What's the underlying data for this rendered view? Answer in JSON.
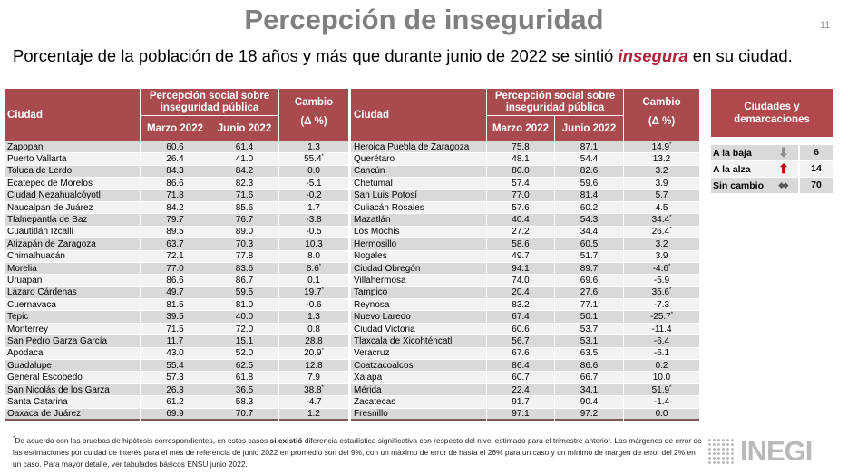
{
  "page": {
    "title": "Percepción de inseguridad",
    "number": "11",
    "subtitle_before": "Porcentaje de la población de 18 años y más que durante junio de 2022 se sintió ",
    "subtitle_em": "insegura",
    "subtitle_after": " en su ciudad."
  },
  "table_headers": {
    "city": "Ciudad",
    "perception": "Percepción social sobre inseguridad pública",
    "march": "Marzo 2022",
    "june": "Junio 2022",
    "change": "Cambio",
    "change_unit": "(Δ %)"
  },
  "left_rows": [
    {
      "city": "Zapopan",
      "mar": "60.6",
      "jun": "61.4",
      "chg": "1.3",
      "sig": false
    },
    {
      "city": "Puerto Vallarta",
      "mar": "26.4",
      "jun": "41.0",
      "chg": "55.4",
      "sig": true
    },
    {
      "city": "Toluca de Lerdo",
      "mar": "84.3",
      "jun": "84.2",
      "chg": "0.0",
      "sig": false
    },
    {
      "city": "Ecatepec de Morelos",
      "mar": "86.6",
      "jun": "82.3",
      "chg": "-5.1",
      "sig": false
    },
    {
      "city": "Ciudad Nezahualcóyotl",
      "mar": "71.8",
      "jun": "71.6",
      "chg": "-0.2",
      "sig": false
    },
    {
      "city": "Naucalpan de Juárez",
      "mar": "84.2",
      "jun": "85.6",
      "chg": "1.7",
      "sig": false
    },
    {
      "city": "Tlalnepantla de Baz",
      "mar": "79.7",
      "jun": "76.7",
      "chg": "-3.8",
      "sig": false
    },
    {
      "city": "Cuautitlán Izcalli",
      "mar": "89.5",
      "jun": "89.0",
      "chg": "-0.5",
      "sig": false
    },
    {
      "city": "Atizapán de Zaragoza",
      "mar": "63.7",
      "jun": "70.3",
      "chg": "10.3",
      "sig": false
    },
    {
      "city": "Chimalhuacán",
      "mar": "72.1",
      "jun": "77.8",
      "chg": "8.0",
      "sig": false
    },
    {
      "city": "Morelia",
      "mar": "77.0",
      "jun": "83.6",
      "chg": "8.6",
      "sig": true
    },
    {
      "city": "Uruapan",
      "mar": "86.6",
      "jun": "86.7",
      "chg": "0.1",
      "sig": false
    },
    {
      "city": "Lázaro Cárdenas",
      "mar": "49.7",
      "jun": "59.5",
      "chg": "19.7",
      "sig": true
    },
    {
      "city": "Cuernavaca",
      "mar": "81.5",
      "jun": "81.0",
      "chg": "-0.6",
      "sig": false
    },
    {
      "city": "Tepic",
      "mar": "39.5",
      "jun": "40.0",
      "chg": "1.3",
      "sig": false
    },
    {
      "city": "Monterrey",
      "mar": "71.5",
      "jun": "72.0",
      "chg": "0.8",
      "sig": false
    },
    {
      "city": "San Pedro Garza García",
      "mar": "11.7",
      "jun": "15.1",
      "chg": "28.8",
      "sig": false
    },
    {
      "city": "Apodaca",
      "mar": "43.0",
      "jun": "52.0",
      "chg": "20.9",
      "sig": true
    },
    {
      "city": "Guadalupe",
      "mar": "55.4",
      "jun": "62.5",
      "chg": "12.8",
      "sig": false
    },
    {
      "city": "General Escobedo",
      "mar": "57.3",
      "jun": "61.8",
      "chg": "7.9",
      "sig": false
    },
    {
      "city": "San Nicolás de los Garza",
      "mar": "26.3",
      "jun": "36.5",
      "chg": "38.8",
      "sig": true
    },
    {
      "city": "Santa Catarina",
      "mar": "61.2",
      "jun": "58.3",
      "chg": "-4.7",
      "sig": false
    },
    {
      "city": "Oaxaca de Juárez",
      "mar": "69.9",
      "jun": "70.7",
      "chg": "1.2",
      "sig": false
    }
  ],
  "right_rows": [
    {
      "city": "Heroica Puebla de Zaragoza",
      "mar": "75.8",
      "jun": "87.1",
      "chg": "14.9",
      "sig": true
    },
    {
      "city": "Querétaro",
      "mar": "48.1",
      "jun": "54.4",
      "chg": "13.2",
      "sig": false
    },
    {
      "city": "Cancún",
      "mar": "80.0",
      "jun": "82.6",
      "chg": "3.2",
      "sig": false
    },
    {
      "city": "Chetumal",
      "mar": "57.4",
      "jun": "59.6",
      "chg": "3.9",
      "sig": false
    },
    {
      "city": "San Luis Potosí",
      "mar": "77.0",
      "jun": "81.4",
      "chg": "5.7",
      "sig": false
    },
    {
      "city": "Culiacán Rosales",
      "mar": "57.6",
      "jun": "60.2",
      "chg": "4.5",
      "sig": false
    },
    {
      "city": "Mazatlán",
      "mar": "40.4",
      "jun": "54.3",
      "chg": "34.4",
      "sig": true
    },
    {
      "city": "Los Mochis",
      "mar": "27.2",
      "jun": "34.4",
      "chg": "26.4",
      "sig": true
    },
    {
      "city": "Hermosillo",
      "mar": "58.6",
      "jun": "60.5",
      "chg": "3.2",
      "sig": false
    },
    {
      "city": "Nogales",
      "mar": "49.7",
      "jun": "51.7",
      "chg": "3.9",
      "sig": false
    },
    {
      "city": "Ciudad Obregón",
      "mar": "94.1",
      "jun": "89.7",
      "chg": "-4.6",
      "sig": true
    },
    {
      "city": "Villahermosa",
      "mar": "74.0",
      "jun": "69.6",
      "chg": "-5.9",
      "sig": false
    },
    {
      "city": "Tampico",
      "mar": "20.4",
      "jun": "27.6",
      "chg": "35.6",
      "sig": true
    },
    {
      "city": "Reynosa",
      "mar": "83.2",
      "jun": "77.1",
      "chg": "-7.3",
      "sig": false
    },
    {
      "city": "Nuevo Laredo",
      "mar": "67.4",
      "jun": "50.1",
      "chg": "-25.7",
      "sig": true
    },
    {
      "city": "Ciudad Victoria",
      "mar": "60.6",
      "jun": "53.7",
      "chg": "-11.4",
      "sig": false
    },
    {
      "city": "Tlaxcala de Xicohténcatl",
      "mar": "56.7",
      "jun": "53.1",
      "chg": "-6.4",
      "sig": false
    },
    {
      "city": "Veracruz",
      "mar": "67.6",
      "jun": "63.5",
      "chg": "-6.1",
      "sig": false
    },
    {
      "city": "Coatzacoalcos",
      "mar": "86.4",
      "jun": "86.6",
      "chg": "0.2",
      "sig": false
    },
    {
      "city": "Xalapa",
      "mar": "60.7",
      "jun": "66.7",
      "chg": "10.0",
      "sig": false
    },
    {
      "city": "Mérida",
      "mar": "22.4",
      "jun": "34.1",
      "chg": "51.9",
      "sig": true
    },
    {
      "city": "Zacatecas",
      "mar": "91.7",
      "jun": "90.4",
      "chg": "-1.4",
      "sig": false
    },
    {
      "city": "Fresnillo",
      "mar": "97.1",
      "jun": "97.2",
      "chg": "0.0",
      "sig": false
    }
  ],
  "summary": {
    "header": "Ciudades y demarcaciones",
    "rows": [
      {
        "label": "A la baja",
        "icon": "arrow-down-icon",
        "value": "6",
        "color": "#8c8c8c"
      },
      {
        "label": "A la alza",
        "icon": "arrow-up-icon",
        "value": "14",
        "color": "#c00000"
      },
      {
        "label": "Sin cambio",
        "icon": "arrow-left-right-icon",
        "value": "70",
        "color": "#595959"
      }
    ]
  },
  "footer": {
    "mark": "*",
    "before": "De acuerdo con las pruebas de hipótesis correspondientes, en estos casos ",
    "bold": "si existió",
    "after": " diferencia estadística significativa con respecto del nivel estimado para el trimestre anterior. Los márgenes de error de las estimaciones por cuidad de interés para el mes de referencia de junio 2022 en promedio son del 9%, con un máximo de error de hasta el 26% para un caso y un mínimo de margen de error del 2% en un caso. Para mayor detalle, ver tabulados básicos ENSU junio 2022."
  },
  "logo": {
    "text": "INEGI"
  },
  "colors": {
    "header": "#a84a4e",
    "highlight": "#b0213a"
  }
}
